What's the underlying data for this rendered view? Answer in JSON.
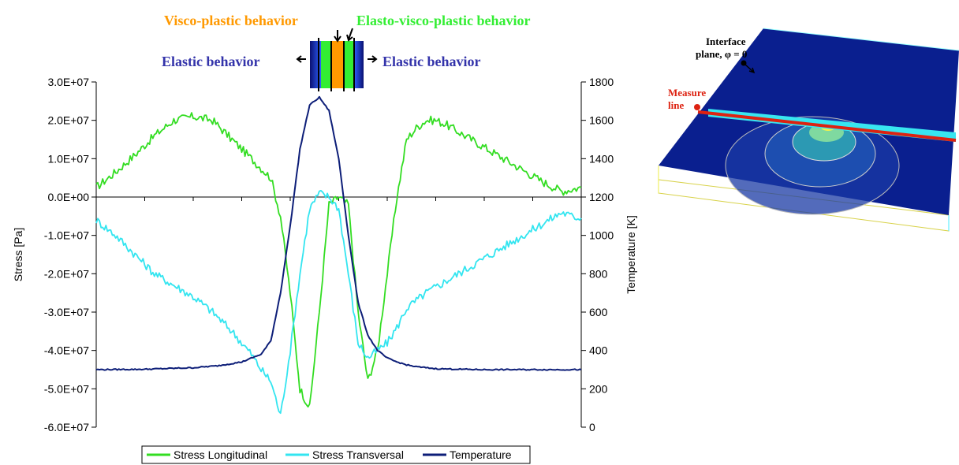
{
  "header": {
    "visco_plastic": "Visco-plastic behavior",
    "elasto_visco_plastic": "Elasto-visco-plastic behavior",
    "elastic_left": "Elastic behavior",
    "elastic_right": "Elastic behavior"
  },
  "colors": {
    "visco_plastic": "#ff9900",
    "elasto_visco_plastic": "#33ee33",
    "elastic": "#3333aa",
    "stress_longitudinal": "#33dd22",
    "stress_transversal": "#33e5f0",
    "temperature": "#0d1e78",
    "plate": "#0a1f8f",
    "measure_line": "#dd2211",
    "measure_bar": "#38e6f0"
  },
  "diagram": {
    "interface_label_line1": "Interface",
    "interface_label_line2": "plane, φ = 0",
    "measure_label_line1": "Measure",
    "measure_label_line2": "line"
  },
  "chart_data": {
    "type": "line",
    "title": "",
    "ylabel": "Stress [Pa]",
    "y2label": "Temperature [K]",
    "xlabel": "",
    "ylim": [
      -60000000,
      30000000
    ],
    "y2lim": [
      0,
      1800
    ],
    "y_ticks": [
      "3.0E+07",
      "2.0E+07",
      "1.0E+07",
      "0.0E+00",
      "-1.0E+07",
      "-2.0E+07",
      "-3.0E+07",
      "-4.0E+07",
      "-5.0E+07",
      "-6.0E+07"
    ],
    "y2_ticks": [
      "1800",
      "1600",
      "1400",
      "1200",
      "1000",
      "800",
      "600",
      "400",
      "200",
      "0"
    ],
    "grid": false,
    "legend_position": "bottom",
    "series": [
      {
        "name": "Stress Longitudinal",
        "axis": "left",
        "x": [
          0,
          4,
          8,
          12,
          16,
          20,
          24,
          28,
          32,
          36,
          38,
          40,
          42,
          44,
          46,
          48,
          50,
          52,
          54,
          56,
          58,
          60,
          62,
          64,
          66,
          68,
          70,
          72,
          76,
          80,
          84,
          88,
          92,
          96,
          100
        ],
        "values": [
          2500000,
          6500000,
          11000000,
          16000000,
          20000000,
          21000000,
          20000000,
          15000000,
          10000000,
          5000000,
          -5000000,
          -25000000,
          -50000000,
          -55000000,
          -30000000,
          -2000000,
          0,
          -2000000,
          -30000000,
          -48000000,
          -40000000,
          -20000000,
          0,
          15000000,
          18000000,
          20000000,
          20000000,
          19000000,
          16000000,
          13000000,
          10000000,
          7000000,
          4000000,
          1500000,
          2500000
        ]
      },
      {
        "name": "Stress Transversal",
        "axis": "left",
        "x": [
          0,
          4,
          8,
          12,
          16,
          20,
          24,
          28,
          32,
          34,
          36,
          38,
          40,
          42,
          44,
          46,
          48,
          50,
          52,
          54,
          56,
          58,
          60,
          62,
          64,
          66,
          68,
          72,
          76,
          80,
          84,
          88,
          92,
          96,
          98,
          100
        ],
        "values": [
          -6000000,
          -10000000,
          -15000000,
          -20000000,
          -23000000,
          -26000000,
          -30000000,
          -35000000,
          -41000000,
          -45000000,
          -48000000,
          -57000000,
          -40000000,
          -20000000,
          -3000000,
          1000000,
          0,
          -3000000,
          -20000000,
          -38000000,
          -42000000,
          -40000000,
          -38000000,
          -34000000,
          -29000000,
          -27000000,
          -25000000,
          -22000000,
          -19000000,
          -16000000,
          -13000000,
          -10000000,
          -7000000,
          -4000000,
          -5000000,
          -5500000
        ]
      },
      {
        "name": "Temperature",
        "axis": "right",
        "x": [
          0,
          10,
          20,
          25,
          30,
          34,
          36,
          38,
          40,
          42,
          44,
          46,
          48,
          50,
          52,
          54,
          56,
          58,
          60,
          62,
          64,
          66,
          70,
          75,
          80,
          90,
          100
        ],
        "values": [
          300,
          302,
          310,
          320,
          340,
          380,
          450,
          700,
          1050,
          1450,
          1680,
          1720,
          1650,
          1400,
          1000,
          650,
          480,
          400,
          360,
          340,
          325,
          315,
          305,
          302,
          300,
          300,
          300
        ]
      }
    ]
  }
}
